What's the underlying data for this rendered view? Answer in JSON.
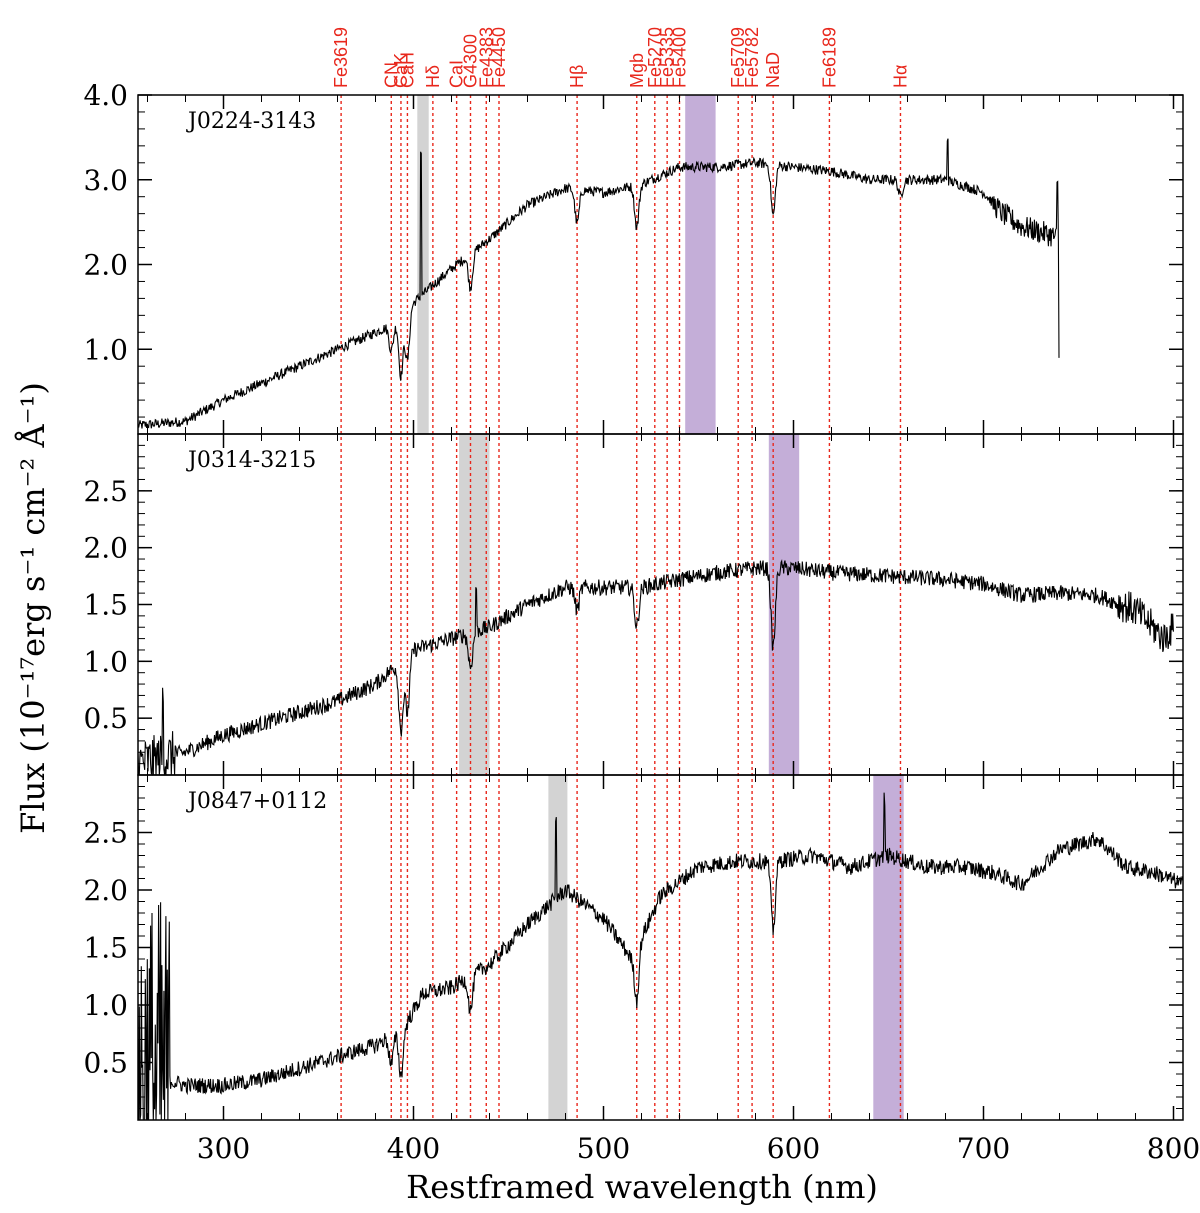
{
  "chart_data": {
    "type": "line",
    "xlabel": "Restframed wavelength (nm)",
    "ylabel": "Flux (10⁻¹⁷erg s⁻¹ cm⁻² Å⁻¹)",
    "xlim": [
      255,
      805
    ],
    "xticks": [
      300,
      400,
      500,
      600,
      700,
      800
    ],
    "line_color": "#e8271c",
    "spectrum_color": "#000000",
    "purple_band_color": "#c4aed8",
    "grey_band_color": "#d3d3d3",
    "spectral_lines": [
      {
        "label": "Fe3619",
        "wavelength": 361.9
      },
      {
        "label": "CN",
        "wavelength": 388.3
      },
      {
        "label": "CaK",
        "wavelength": 393.4
      },
      {
        "label": "CaH",
        "wavelength": 396.8
      },
      {
        "label": "Hδ",
        "wavelength": 410.2
      },
      {
        "label": "CaI",
        "wavelength": 422.7
      },
      {
        "label": "G4300",
        "wavelength": 430.0
      },
      {
        "label": "Fe4383",
        "wavelength": 438.3
      },
      {
        "label": "Fe4450",
        "wavelength": 445.0
      },
      {
        "label": "Hβ",
        "wavelength": 486.1
      },
      {
        "label": "Mgb",
        "wavelength": 517.5
      },
      {
        "label": "Fe5270",
        "wavelength": 527.0
      },
      {
        "label": "Fe5335",
        "wavelength": 533.5
      },
      {
        "label": "Fe5400",
        "wavelength": 540.0
      },
      {
        "label": "Fe5709",
        "wavelength": 570.9
      },
      {
        "label": "Fe5782",
        "wavelength": 578.2
      },
      {
        "label": "NaD",
        "wavelength": 589.3
      },
      {
        "label": "Fe6189",
        "wavelength": 618.9
      },
      {
        "label": "Hα",
        "wavelength": 656.3
      }
    ],
    "panels": [
      {
        "name": "J0224-3143",
        "ylim": [
          0,
          4.0
        ],
        "yticks": [
          1.0,
          2.0,
          3.0,
          4.0
        ],
        "ytick_labels": [
          "1.0",
          "2.0",
          "3.0",
          "4.0"
        ],
        "x_start": 255,
        "x_end": 740,
        "grey_band": [
          402,
          408
        ],
        "purple_band": [
          543,
          559
        ],
        "continuum": [
          [
            255,
            0.1
          ],
          [
            280,
            0.15
          ],
          [
            300,
            0.4
          ],
          [
            330,
            0.7
          ],
          [
            350,
            0.9
          ],
          [
            370,
            1.1
          ],
          [
            390,
            1.3
          ],
          [
            400,
            1.55
          ],
          [
            410,
            1.75
          ],
          [
            420,
            1.95
          ],
          [
            440,
            2.3
          ],
          [
            460,
            2.7
          ],
          [
            480,
            2.9
          ],
          [
            500,
            2.85
          ],
          [
            520,
            2.95
          ],
          [
            540,
            3.15
          ],
          [
            560,
            3.15
          ],
          [
            580,
            3.2
          ],
          [
            600,
            3.15
          ],
          [
            620,
            3.1
          ],
          [
            640,
            3.0
          ],
          [
            660,
            3.0
          ],
          [
            680,
            3.0
          ],
          [
            700,
            2.85
          ],
          [
            710,
            2.6
          ],
          [
            720,
            2.45
          ],
          [
            735,
            2.35
          ],
          [
            740,
            2.3
          ]
        ],
        "noise": 0.06,
        "absorptions": [
          [
            388.3,
            0.3
          ],
          [
            393.4,
            0.7
          ],
          [
            396.8,
            0.6
          ],
          [
            430,
            0.4
          ],
          [
            486.1,
            0.4
          ],
          [
            517.5,
            0.5
          ],
          [
            589.3,
            0.6
          ],
          [
            656.3,
            0.2
          ]
        ],
        "spikes": [
          [
            404,
            1.7
          ],
          [
            681,
            0.5
          ],
          [
            740,
            -1.4
          ],
          [
            739,
            0.6
          ]
        ]
      },
      {
        "name": "J0314-3215",
        "ylim": [
          0,
          3.0
        ],
        "yticks": [
          0.5,
          1.0,
          1.5,
          2.0,
          2.5
        ],
        "ytick_labels": [
          "0.5",
          "1.0",
          "1.5",
          "2.0",
          "2.5"
        ],
        "x_start": 255,
        "x_end": 800,
        "grey_band": [
          424,
          440
        ],
        "purple_band": [
          587,
          603
        ],
        "continuum": [
          [
            255,
            0.1
          ],
          [
            280,
            0.2
          ],
          [
            300,
            0.35
          ],
          [
            330,
            0.5
          ],
          [
            360,
            0.65
          ],
          [
            380,
            0.8
          ],
          [
            400,
            1.1
          ],
          [
            420,
            1.2
          ],
          [
            440,
            1.3
          ],
          [
            460,
            1.5
          ],
          [
            480,
            1.65
          ],
          [
            500,
            1.65
          ],
          [
            520,
            1.65
          ],
          [
            540,
            1.72
          ],
          [
            560,
            1.78
          ],
          [
            580,
            1.82
          ],
          [
            600,
            1.82
          ],
          [
            620,
            1.78
          ],
          [
            650,
            1.75
          ],
          [
            680,
            1.72
          ],
          [
            700,
            1.68
          ],
          [
            720,
            1.58
          ],
          [
            740,
            1.6
          ],
          [
            760,
            1.58
          ],
          [
            780,
            1.45
          ],
          [
            795,
            1.2
          ],
          [
            800,
            1.3
          ]
        ],
        "noise": 0.07,
        "absorptions": [
          [
            393.4,
            0.6
          ],
          [
            396.8,
            0.5
          ],
          [
            430,
            0.3
          ],
          [
            486.1,
            0.2
          ],
          [
            517.5,
            0.35
          ],
          [
            589.3,
            0.7
          ]
        ],
        "spikes": [
          [
            433,
            0.4
          ],
          [
            268,
            0.5
          ]
        ]
      },
      {
        "name": "J0847+0112",
        "ylim": [
          0,
          3.0
        ],
        "yticks": [
          0.5,
          1.0,
          1.5,
          2.0,
          2.5
        ],
        "ytick_labels": [
          "0.5",
          "1.0",
          "1.5",
          "2.0",
          "2.5"
        ],
        "x_start": 255,
        "x_end": 805,
        "grey_band": [
          471,
          481
        ],
        "purple_band": [
          642,
          658
        ],
        "continuum": [
          [
            255,
            0.4
          ],
          [
            270,
            0.35
          ],
          [
            280,
            0.3
          ],
          [
            300,
            0.3
          ],
          [
            320,
            0.35
          ],
          [
            340,
            0.45
          ],
          [
            360,
            0.55
          ],
          [
            380,
            0.65
          ],
          [
            395,
            0.8
          ],
          [
            405,
            1.1
          ],
          [
            420,
            1.15
          ],
          [
            440,
            1.35
          ],
          [
            460,
            1.7
          ],
          [
            480,
            2.0
          ],
          [
            500,
            1.75
          ],
          [
            515,
            1.4
          ],
          [
            530,
            1.95
          ],
          [
            550,
            2.2
          ],
          [
            570,
            2.25
          ],
          [
            590,
            2.25
          ],
          [
            610,
            2.3
          ],
          [
            630,
            2.2
          ],
          [
            650,
            2.3
          ],
          [
            670,
            2.2
          ],
          [
            690,
            2.2
          ],
          [
            705,
            2.15
          ],
          [
            720,
            2.05
          ],
          [
            740,
            2.35
          ],
          [
            760,
            2.45
          ],
          [
            775,
            2.2
          ],
          [
            790,
            2.15
          ],
          [
            805,
            2.05
          ]
        ],
        "noise": 0.07,
        "absorptions": [
          [
            388.3,
            0.25
          ],
          [
            393.4,
            0.4
          ],
          [
            430,
            0.3
          ],
          [
            517.5,
            0.45
          ],
          [
            589.3,
            0.6
          ]
        ],
        "spikes": [
          [
            475,
            0.7
          ],
          [
            648,
            0.5
          ]
        ]
      }
    ]
  }
}
